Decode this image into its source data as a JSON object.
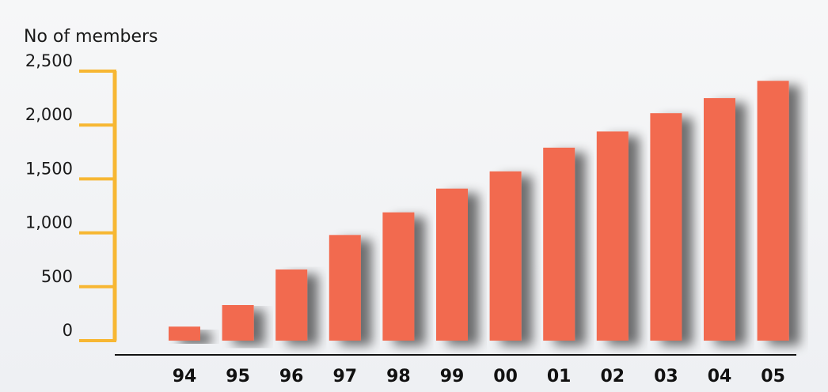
{
  "chart_data": {
    "type": "bar",
    "title": "",
    "xlabel": "",
    "ylabel": "No of members",
    "categories": [
      "94",
      "95",
      "96",
      "97",
      "98",
      "99",
      "00",
      "01",
      "02",
      "03",
      "04",
      "05"
    ],
    "values": [
      130,
      330,
      660,
      980,
      1190,
      1410,
      1570,
      1790,
      1940,
      2110,
      2250,
      2410
    ],
    "yticks": [
      {
        "value": 0,
        "label": "0"
      },
      {
        "value": 500,
        "label": "500"
      },
      {
        "value": 1000,
        "label": "1,000"
      },
      {
        "value": 1500,
        "label": "1,500"
      },
      {
        "value": 2000,
        "label": "2,000"
      },
      {
        "value": 2500,
        "label": "2,500"
      }
    ],
    "ylim": [
      0,
      2500
    ],
    "grid": false,
    "colors": {
      "bar": "#f26a4f",
      "axis_accent": "#f7b733",
      "baseline": "#111111"
    }
  }
}
